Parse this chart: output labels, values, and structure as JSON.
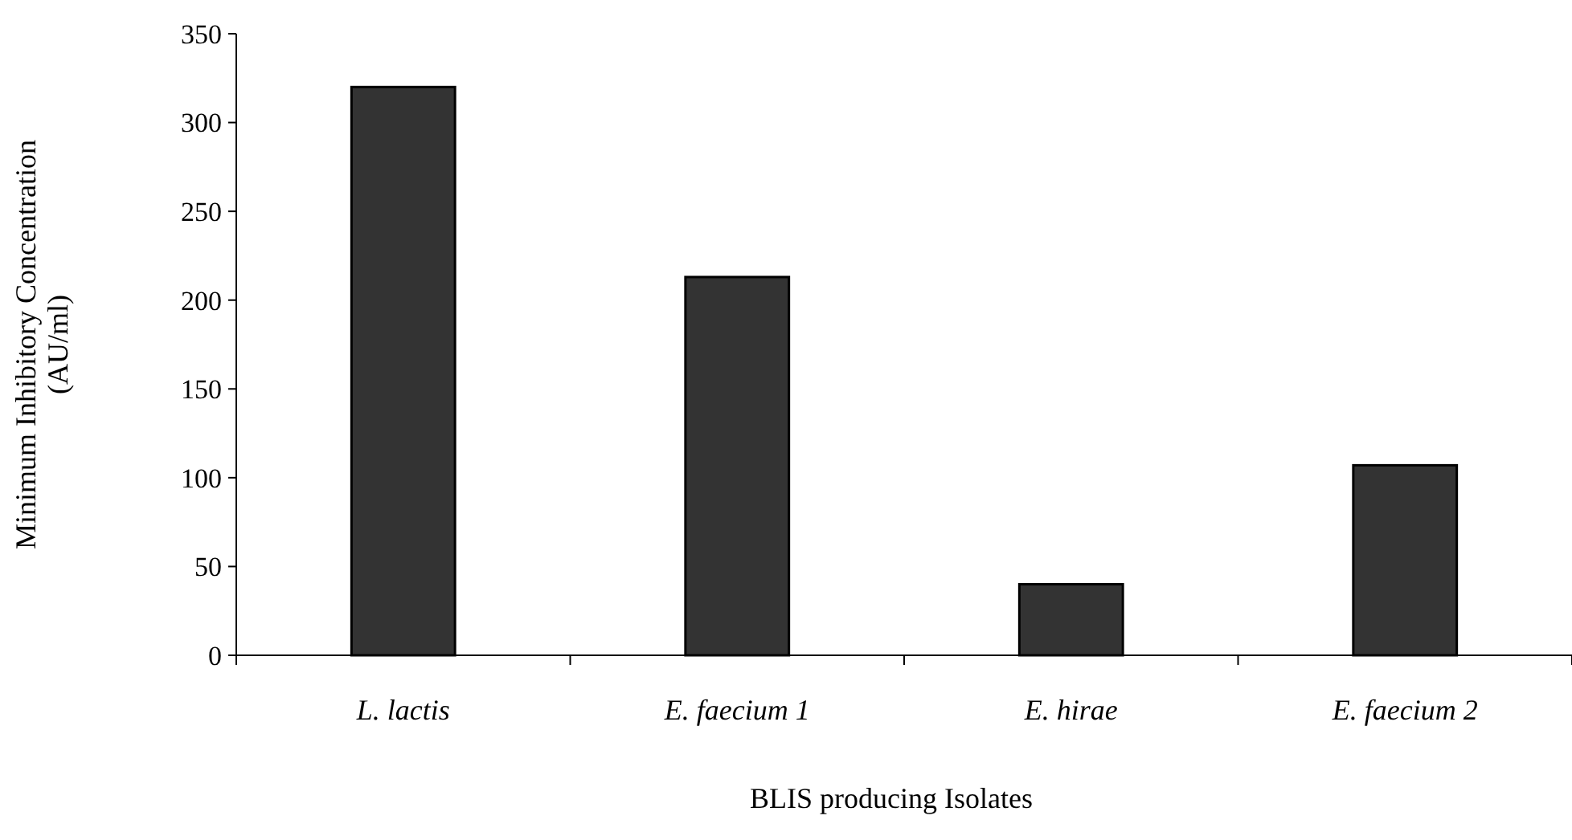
{
  "chart_data": {
    "type": "bar",
    "xlabel": "BLIS producing Isolates",
    "ylabel": "Minimum Inhibitory Concentration\n(AU/ml)",
    "categories": [
      "L. lactis",
      "E. faecium 1",
      "E. hirae",
      "E. faecium 2"
    ],
    "values": [
      320,
      213,
      40,
      107
    ],
    "color": "#333333",
    "ylim": [
      0,
      350
    ],
    "yticks": [
      0,
      50,
      100,
      150,
      200,
      250,
      300,
      350
    ],
    "grid": false
  }
}
